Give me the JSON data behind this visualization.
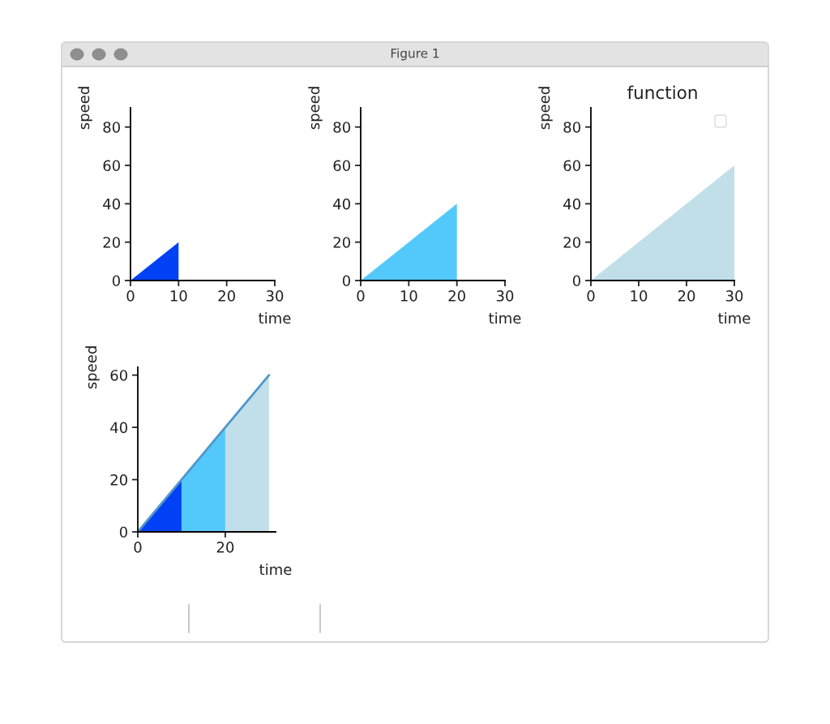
{
  "chart_data": [
    {
      "type": "area",
      "x": [
        0,
        10
      ],
      "values": [
        0,
        20
      ],
      "color": "#0041f5",
      "xlabel": "time",
      "ylabel": "speed",
      "xlim": [
        0,
        30
      ],
      "ylim": [
        0,
        90
      ],
      "xticks": [
        0,
        10,
        20,
        30
      ],
      "yticks": [
        0,
        20,
        40,
        60,
        80
      ],
      "annotations": [
        "Figure 1"
      ]
    },
    {
      "type": "area",
      "x": [
        0,
        20
      ],
      "values": [
        0,
        40
      ],
      "color": "#53c9fb",
      "xlabel": "time",
      "ylabel": "speed",
      "xlim": [
        0,
        30
      ],
      "ylim": [
        0,
        90
      ],
      "xticks": [
        0,
        10,
        20,
        30
      ],
      "yticks": [
        0,
        20,
        40,
        60,
        80
      ]
    },
    {
      "type": "area",
      "title": "function",
      "x": [
        0,
        30
      ],
      "values": [
        0,
        60
      ],
      "color": "#c1dfe9",
      "xlabel": "time",
      "ylabel": "speed",
      "xlim": [
        0,
        30
      ],
      "ylim": [
        0,
        90
      ],
      "xticks": [
        0,
        10,
        20,
        30
      ],
      "yticks": [
        0,
        20,
        40,
        60,
        80
      ]
    },
    {
      "type": "area",
      "series": [
        {
          "x": [
            0,
            10
          ],
          "values": [
            0,
            20
          ],
          "color": "#0041f5"
        },
        {
          "x": [
            10,
            20
          ],
          "values": [
            20,
            40
          ],
          "color": "#53c9fb"
        },
        {
          "x": [
            20,
            30
          ],
          "values": [
            40,
            60
          ],
          "color": "#c1dfe9"
        },
        {
          "type": "line",
          "x": [
            0,
            30
          ],
          "values": [
            0,
            60
          ],
          "color": "#5096cb"
        }
      ],
      "xlabel": "time",
      "ylabel": "speed",
      "xlim": [
        0,
        31.5
      ],
      "ylim": [
        0,
        63
      ],
      "xticks": [
        0,
        20
      ],
      "yticks": [
        0,
        20,
        40,
        60
      ]
    }
  ]
}
